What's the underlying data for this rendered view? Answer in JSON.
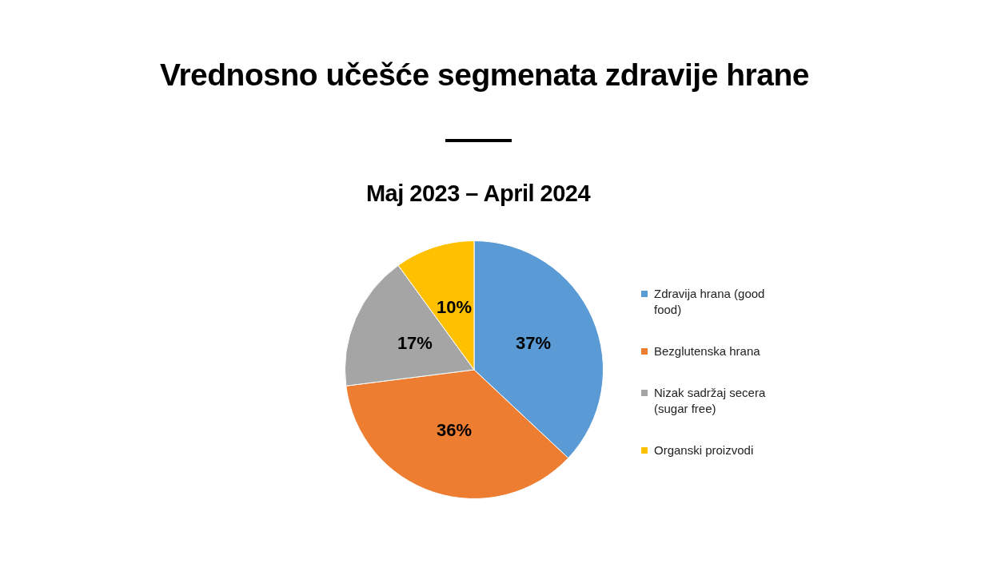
{
  "chart_data": {
    "type": "pie",
    "title": "Vrednosno učešće segmenata zdravije hrane",
    "subtitle": "Maj 2023 – April 2024",
    "categories": [
      "Zdravija hrana (good food)",
      "Bezglutenska hrana",
      "Nizak sadržaj secera (sugar free)",
      "Organski proizvodi"
    ],
    "values": [
      37,
      36,
      17,
      10
    ],
    "colors": [
      "#5b9bd5",
      "#ed7d31",
      "#a5a5a5",
      "#ffc000"
    ],
    "value_labels": [
      "37%",
      "36%",
      "17%",
      "10%"
    ],
    "legend": "right"
  }
}
